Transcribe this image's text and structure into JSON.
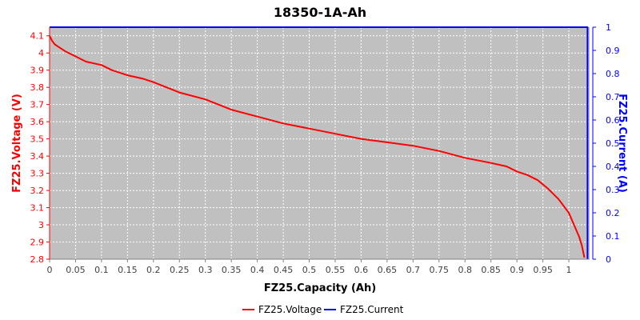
{
  "chart_data": {
    "type": "line",
    "title": "18350-1A-Ah",
    "xlabel": "FZ25.Capacity (Ah)",
    "ylabel_left": "FZ25.Voltage (V)",
    "ylabel_right": "FZ25.Current (A)",
    "xlim": [
      0,
      1.04
    ],
    "ylim_left": [
      2.8,
      4.15
    ],
    "ylim_right": [
      0,
      1.0
    ],
    "x_ticks": [
      "0",
      "0.05",
      "0.1",
      "0.15",
      "0.2",
      "0.25",
      "0.3",
      "0.35",
      "0.4",
      "0.45",
      "0.5",
      "0.55",
      "0.6",
      "0.65",
      "0.7",
      "0.75",
      "0.8",
      "0.85",
      "0.9",
      "0.95",
      "1"
    ],
    "y_left_ticks": [
      "2.8",
      "2.9",
      "3",
      "3.1",
      "3.2",
      "3.3",
      "3.4",
      "3.5",
      "3.6",
      "3.7",
      "3.8",
      "3.9",
      "4",
      "4.1"
    ],
    "y_right_ticks": [
      "0",
      "0.1",
      "0.2",
      "0.3",
      "0.4",
      "0.5",
      "0.6",
      "0.7",
      "0.8",
      "0.9",
      "1"
    ],
    "grid": true,
    "legend_position": "bottom",
    "colors": {
      "voltage": "#ff0000",
      "current": "#0000ff",
      "plot_bg": "#c0c0c0",
      "grid": "#ffffff"
    },
    "series": [
      {
        "name": "FZ25.Voltage",
        "axis": "left",
        "x": [
          0,
          0.005,
          0.01,
          0.02,
          0.03,
          0.05,
          0.07,
          0.1,
          0.12,
          0.15,
          0.18,
          0.2,
          0.25,
          0.3,
          0.35,
          0.4,
          0.45,
          0.5,
          0.55,
          0.6,
          0.65,
          0.7,
          0.75,
          0.8,
          0.85,
          0.88,
          0.9,
          0.92,
          0.94,
          0.96,
          0.98,
          1.0,
          1.01,
          1.02,
          1.025,
          1.03
        ],
        "y": [
          4.1,
          4.07,
          4.05,
          4.03,
          4.01,
          3.98,
          3.95,
          3.93,
          3.9,
          3.87,
          3.85,
          3.83,
          3.77,
          3.73,
          3.67,
          3.63,
          3.59,
          3.56,
          3.53,
          3.5,
          3.48,
          3.46,
          3.43,
          3.39,
          3.36,
          3.34,
          3.31,
          3.29,
          3.26,
          3.21,
          3.15,
          3.07,
          3.0,
          2.93,
          2.88,
          2.81
        ]
      },
      {
        "name": "FZ25.Current",
        "axis": "right",
        "x": [
          0,
          1.036,
          1.036
        ],
        "y": [
          1.0,
          1.0,
          0.0
        ]
      }
    ],
    "legend": [
      "FZ25.Voltage",
      "FZ25.Current"
    ]
  }
}
